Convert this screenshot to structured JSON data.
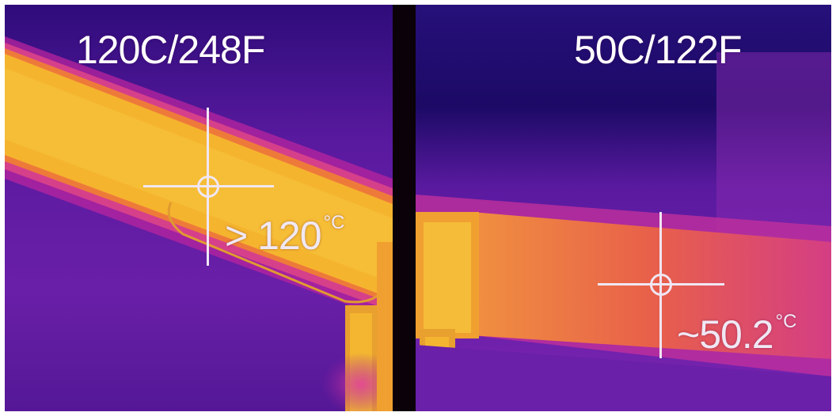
{
  "left_panel": {
    "title": "120C/248F",
    "reading_value": "> 120",
    "reading_unit": "°C",
    "icon": "crosshair-reticle"
  },
  "right_panel": {
    "title": "50C/122F",
    "reading_value": "~50.2",
    "reading_unit": "°C",
    "icon": "crosshair-reticle"
  },
  "palette": {
    "background_cold": "#3a0f8a",
    "mid": "#b21fa6",
    "warm": "#f07a2a",
    "hot": "#f4b830"
  }
}
